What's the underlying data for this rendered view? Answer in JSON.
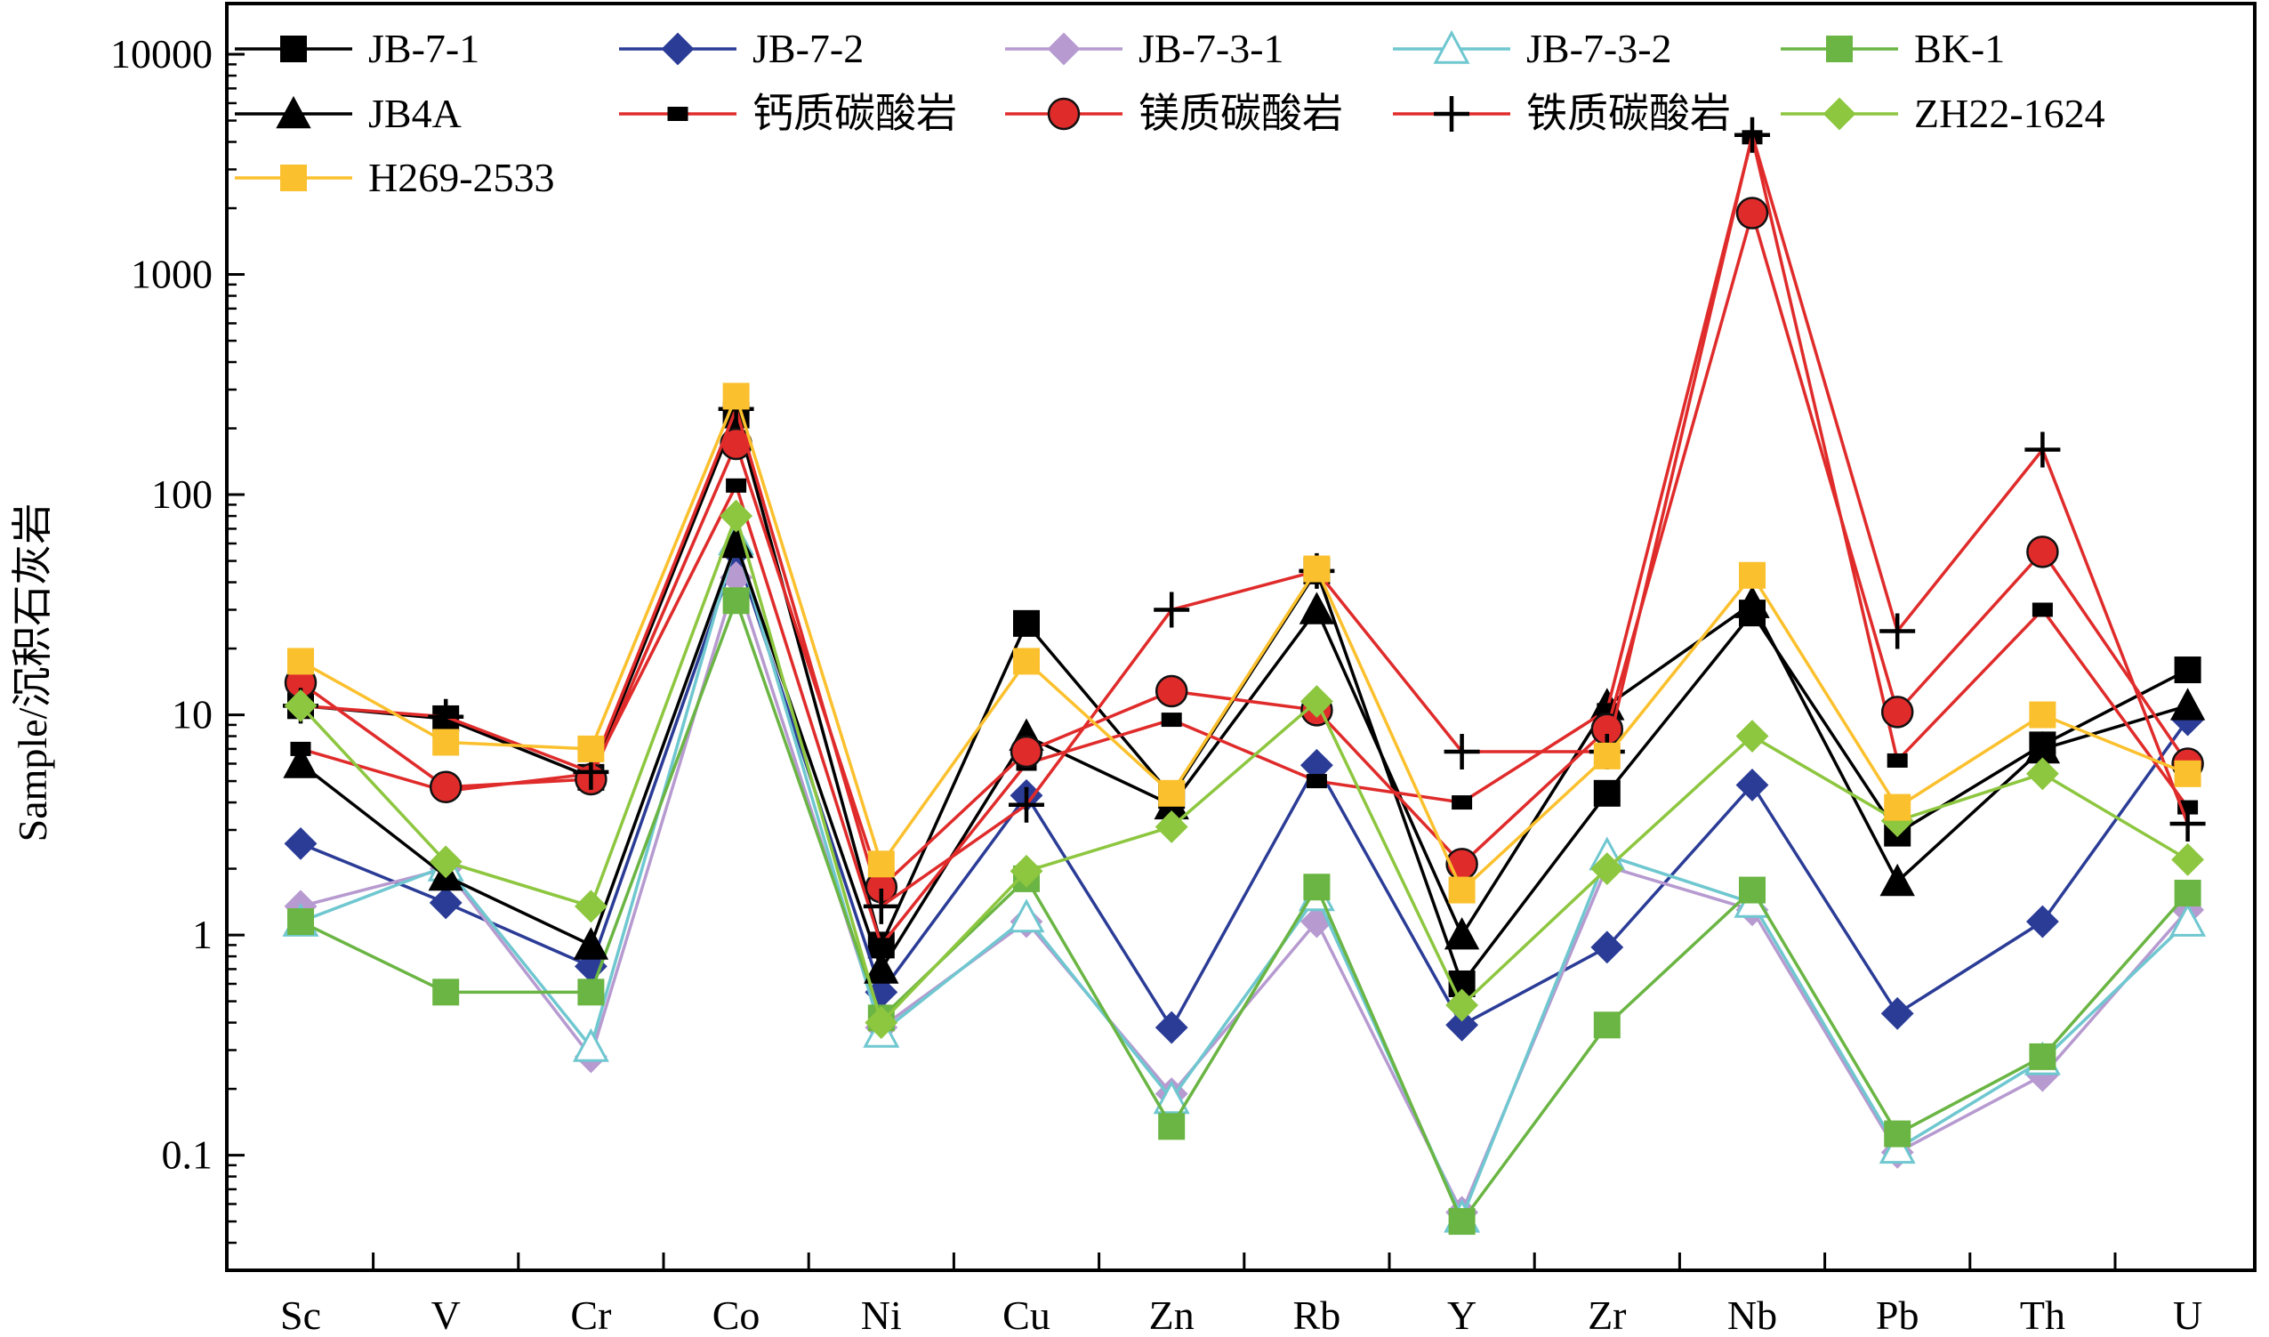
{
  "chart_data": {
    "type": "line",
    "title": "",
    "xlabel": "",
    "ylabel": "Sample/沉积石灰岩",
    "yscale": "log",
    "ylim": [
      0.03,
      17000
    ],
    "yticks": [
      {
        "value": 0.1,
        "label": "0.1"
      },
      {
        "value": 1,
        "label": "1"
      },
      {
        "value": 10,
        "label": "10"
      },
      {
        "value": 100,
        "label": "100"
      },
      {
        "value": 1000,
        "label": "1000"
      },
      {
        "value": 10000,
        "label": "10000"
      }
    ],
    "categories": [
      "Sc",
      "V",
      "Cr",
      "Co",
      "Ni",
      "Cu",
      "Zn",
      "Rb",
      "Y",
      "Zr",
      "Nb",
      "Pb",
      "Th",
      "U"
    ],
    "legend_position": "top",
    "series": [
      {
        "name": "JB-7-1",
        "color": "#000000",
        "marker": "square",
        "values": [
          11,
          9.6,
          5.2,
          230,
          0.9,
          26,
          4.3,
          45,
          0.6,
          4.4,
          29,
          2.9,
          7.3,
          16
        ]
      },
      {
        "name": "JB-7-2",
        "color": "#2b3c97",
        "marker": "diamond",
        "values": [
          2.6,
          1.4,
          0.72,
          55,
          0.55,
          4.3,
          0.38,
          5.9,
          0.39,
          0.88,
          4.8,
          0.44,
          1.15,
          9.5
        ]
      },
      {
        "name": "JB-7-3-1",
        "color": "#b69ad0",
        "marker": "diamond",
        "values": [
          1.35,
          2.0,
          0.28,
          42,
          0.38,
          1.15,
          0.19,
          1.15,
          0.055,
          2.05,
          1.3,
          0.103,
          0.23,
          1.3
        ]
      },
      {
        "name": "JB-7-3-2",
        "color": "#6fc7d0",
        "marker": "triangle-open",
        "values": [
          1.15,
          2.05,
          0.31,
          62,
          0.36,
          1.2,
          0.18,
          1.5,
          0.052,
          2.3,
          1.4,
          0.107,
          0.27,
          1.15
        ]
      },
      {
        "name": "BK-1",
        "color": "#6ab543",
        "marker": "square",
        "values": [
          1.15,
          0.55,
          0.55,
          33,
          0.42,
          1.8,
          0.135,
          1.65,
          0.05,
          0.39,
          1.6,
          0.125,
          0.28,
          1.55
        ]
      },
      {
        "name": "JB4A",
        "color": "#000000",
        "marker": "triangle",
        "values": [
          6.0,
          1.85,
          0.9,
          60,
          0.7,
          8.0,
          3.9,
          30,
          1.0,
          11,
          32,
          1.75,
          7.0,
          11
        ]
      },
      {
        "name": "钙质碳酸岩",
        "color": "#e02b2b",
        "marker": "small-square",
        "values": [
          7.0,
          4.5,
          5.4,
          110,
          0.9,
          6.0,
          9.5,
          5.0,
          4.0,
          10.5,
          4200,
          6.2,
          30,
          3.8
        ]
      },
      {
        "name": "镁质碳酸岩",
        "color": "#e02b2b",
        "marker": "circle",
        "values": [
          14,
          4.7,
          5.1,
          170,
          1.65,
          6.8,
          12.8,
          10.5,
          2.1,
          8.6,
          1900,
          10.3,
          55,
          6.0
        ]
      },
      {
        "name": "铁质碳酸岩",
        "color": "#e02b2b",
        "marker": "plus",
        "values": [
          11,
          9.8,
          5.5,
          245,
          1.35,
          3.9,
          30,
          45,
          6.8,
          6.8,
          4300,
          24,
          160,
          3.2
        ]
      },
      {
        "name": "ZH22-1624",
        "color": "#8dc63f",
        "marker": "diamond",
        "values": [
          11,
          2.15,
          1.35,
          80,
          0.4,
          1.95,
          3.1,
          11.5,
          0.48,
          2.0,
          8.0,
          3.3,
          5.4,
          2.2
        ]
      },
      {
        "name": "H269-2533",
        "color": "#fbc02d",
        "marker": "square",
        "values": [
          17.5,
          7.5,
          7.0,
          280,
          2.1,
          17.5,
          4.4,
          46,
          1.6,
          6.5,
          43,
          3.8,
          10,
          5.4
        ]
      }
    ]
  }
}
